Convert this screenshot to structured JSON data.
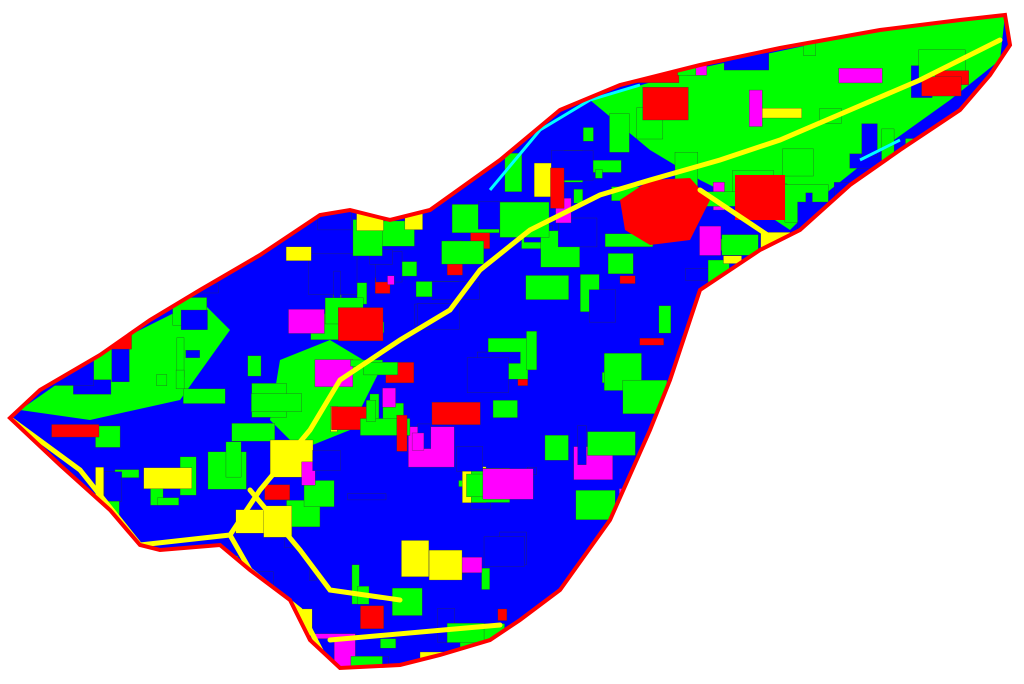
{
  "map": {
    "colors": {
      "background": "#ffffff",
      "class_blue": "#0000ff",
      "class_green": "#00ff00",
      "class_red": "#ff0000",
      "class_yellow": "#ffff00",
      "class_magenta": "#ff00ff",
      "class_cyan": "#00ffff",
      "boundary": "#ff0000",
      "parcel_lines": "#333333"
    }
  }
}
